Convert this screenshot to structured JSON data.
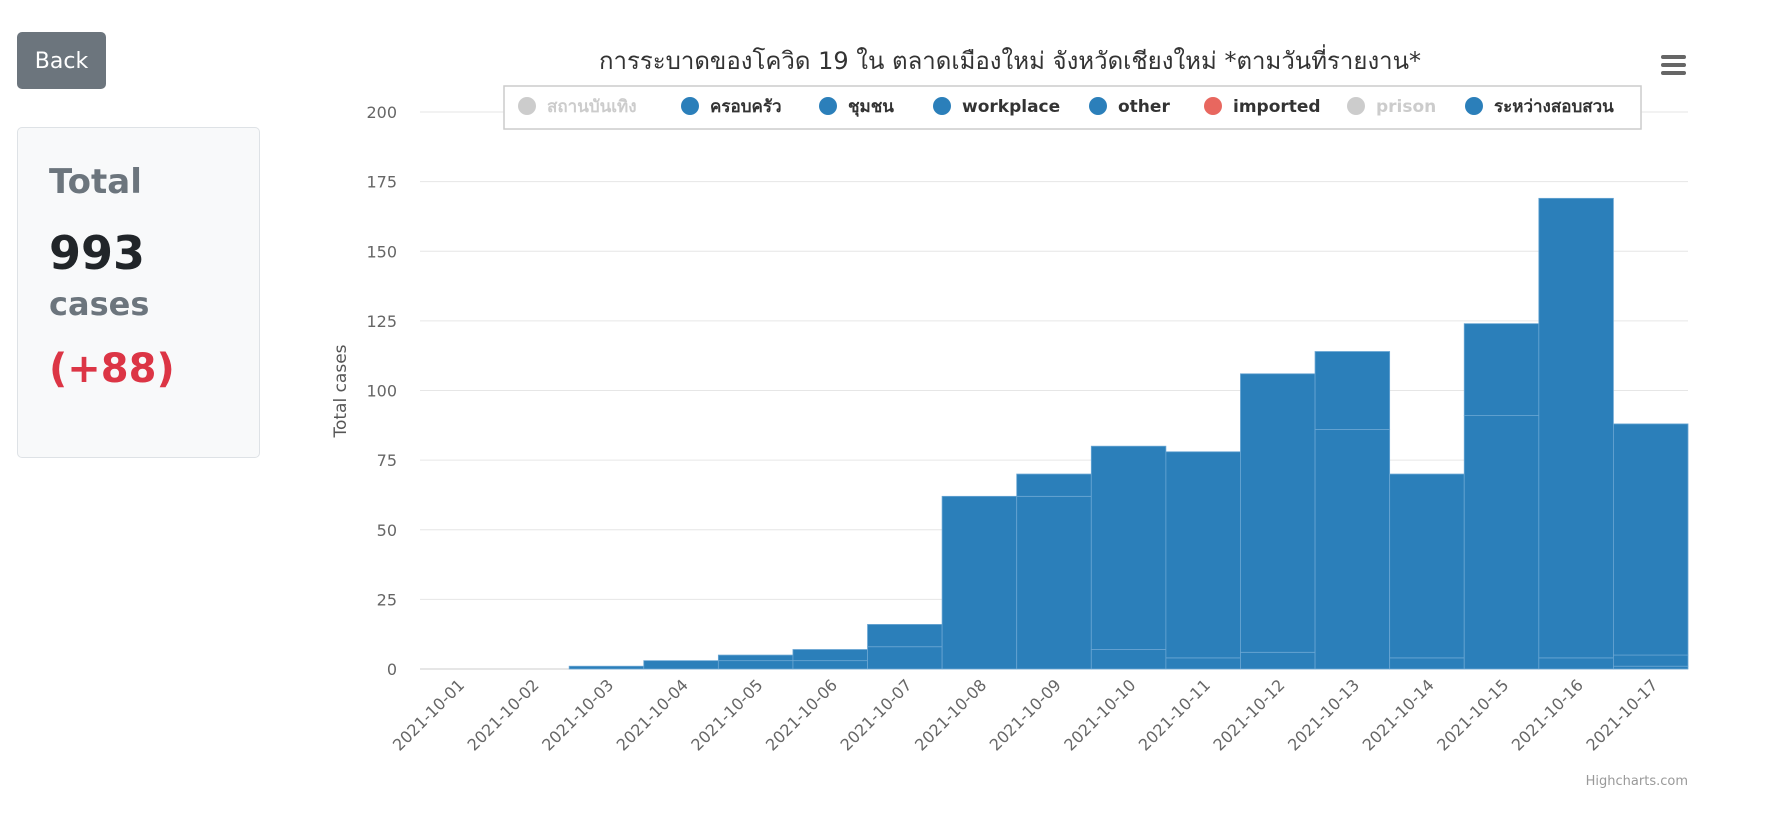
{
  "back_label": "Back",
  "summary": {
    "title": "Total",
    "count": "993",
    "unit": "cases",
    "change": "(+88)"
  },
  "colors": {
    "series_blue": "#2b7fba",
    "imported": "#e8675f",
    "hidden": "#cccccc",
    "delta_red": "#dc3545",
    "button_gray": "#6c757d"
  },
  "icons": {
    "menu": "hamburger-menu-icon"
  },
  "credit": "Highcharts.com",
  "chart_data": {
    "type": "bar",
    "stacked": true,
    "title": "การระบาดของโควิด 19 ใน ตลาดเมืองใหม่ จังหวัดเชียงใหม่ *ตามวันที่รายงาน*",
    "xlabel": "",
    "ylabel": "Total cases",
    "ylim": [
      0,
      200
    ],
    "yticks": [
      0,
      25,
      50,
      75,
      100,
      125,
      150,
      175,
      200
    ],
    "grid": true,
    "legend_position": "top",
    "categories": [
      "2021-10-01",
      "2021-10-02",
      "2021-10-03",
      "2021-10-04",
      "2021-10-05",
      "2021-10-06",
      "2021-10-07",
      "2021-10-08",
      "2021-10-09",
      "2021-10-10",
      "2021-10-11",
      "2021-10-12",
      "2021-10-13",
      "2021-10-14",
      "2021-10-15",
      "2021-10-16",
      "2021-10-17"
    ],
    "series": [
      {
        "name": "สถานบันเทิง",
        "visible": false,
        "values": [
          0,
          0,
          0,
          0,
          0,
          0,
          0,
          0,
          0,
          0,
          0,
          0,
          0,
          0,
          0,
          0,
          0
        ]
      },
      {
        "name": "ครอบครัว",
        "visible": true,
        "values": [
          0,
          0,
          0,
          0,
          0,
          0,
          0,
          0,
          0,
          0,
          0,
          0,
          0,
          0,
          0,
          0,
          1
        ]
      },
      {
        "name": "ชุมชน",
        "visible": true,
        "values": [
          0,
          0,
          0,
          0,
          0,
          0,
          0,
          0,
          0,
          0,
          0,
          0,
          0,
          0,
          0,
          0,
          0
        ]
      },
      {
        "name": "workplace",
        "visible": true,
        "values": [
          0,
          0,
          0,
          0,
          0,
          0,
          0,
          0,
          0,
          0,
          0,
          0,
          0,
          0,
          0,
          0,
          0
        ]
      },
      {
        "name": "other",
        "visible": true,
        "values": [
          0,
          0,
          1,
          3,
          3,
          3,
          8,
          62,
          62,
          7,
          4,
          6,
          86,
          4,
          91,
          4,
          4
        ]
      },
      {
        "name": "imported",
        "visible": true,
        "values": [
          0,
          0,
          0,
          0,
          0,
          0,
          0,
          0,
          0,
          0,
          0,
          0,
          0,
          0,
          0,
          0,
          0
        ]
      },
      {
        "name": "prison",
        "visible": false,
        "values": [
          0,
          0,
          0,
          0,
          0,
          0,
          0,
          0,
          0,
          0,
          0,
          0,
          0,
          0,
          0,
          0,
          0
        ]
      },
      {
        "name": "ระหว่างสอบสวน",
        "visible": true,
        "values": [
          0,
          0,
          0,
          0,
          2,
          4,
          8,
          0,
          8,
          73,
          74,
          100,
          28,
          66,
          33,
          165,
          83
        ]
      }
    ]
  }
}
